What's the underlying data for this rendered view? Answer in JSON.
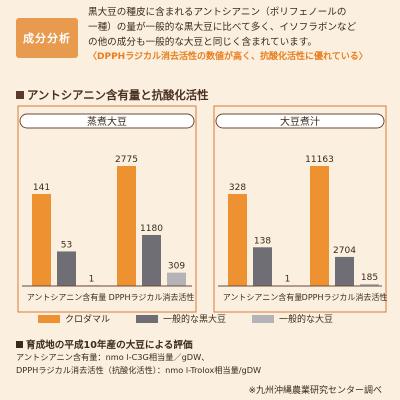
{
  "badge": "成分分析",
  "intro": {
    "line1": "黒大豆の種皮に含まれるアントシアニン（ポリフェノールの",
    "line2": "一種）の量が一般的な黒大豆に比べて多く、イソフラボンなど",
    "line3": "の他の成分も一般的な大豆と同じく含まれています。",
    "highlight": "〈DPPHラジカル消去活性の数値が高く、抗酸化活性に優れている〉"
  },
  "section_title": "アントシアニン含有量と抗酸化活性",
  "colors": {
    "series1": "#ee9130",
    "series2": "#6e6e74",
    "series3": "#b3b3b8",
    "panel_border": "#d9783a"
  },
  "chart_data": [
    {
      "type": "bar",
      "title": "蒸煮大豆",
      "categories": [
        "アントシアニン含有量",
        "DPPHラジカル消去活性"
      ],
      "series": [
        {
          "name": "クロダマル",
          "values": [
            141,
            2775
          ]
        },
        {
          "name": "一般的な黒大豆",
          "values": [
            53,
            1180
          ]
        },
        {
          "name": "一般的な大豆",
          "values": [
            1,
            309
          ]
        }
      ]
    },
    {
      "type": "bar",
      "title": "大豆煮汁",
      "categories": [
        "アントシアニン含有量",
        "DPPHラジカル消去活性"
      ],
      "series": [
        {
          "name": "クロダマル",
          "values": [
            328,
            11163
          ]
        },
        {
          "name": "一般的な黒大豆",
          "values": [
            138,
            2704
          ]
        },
        {
          "name": "一般的な大豆",
          "values": [
            1,
            185
          ]
        }
      ]
    }
  ],
  "legend": [
    "クロダマル",
    "一般的な黒大豆",
    "一般的な大豆"
  ],
  "notes": {
    "title": "育成地の平成10年産の大豆による評価",
    "line1": "アントシアニン含有量：nmo l-C3G相当量／gDW、",
    "line2": "DPPHラジカル消去活性（抗酸化活性）：nmo l-Trolox相当量/gDW"
  },
  "source": "※九州沖縄農業研究センター調べ"
}
